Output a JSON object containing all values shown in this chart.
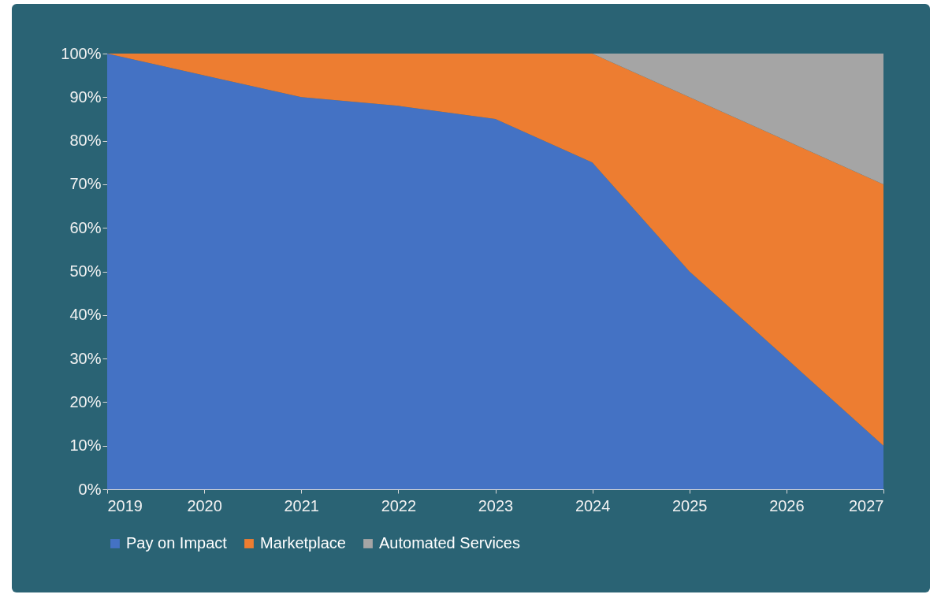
{
  "chart_data": {
    "type": "area",
    "stacked": true,
    "x": [
      2019,
      2020,
      2021,
      2022,
      2023,
      2024,
      2025,
      2026,
      2027
    ],
    "xlim": [
      2019,
      2027
    ],
    "xticks": [
      2019,
      2020,
      2021,
      2022,
      2023,
      2024,
      2025,
      2026,
      2027
    ],
    "ylim": [
      0,
      100
    ],
    "yticks": [
      {
        "value": 0,
        "label": "0%"
      },
      {
        "value": 10,
        "label": "10%"
      },
      {
        "value": 20,
        "label": "20%"
      },
      {
        "value": 30,
        "label": "30%"
      },
      {
        "value": 40,
        "label": "40%"
      },
      {
        "value": 50,
        "label": "50%"
      },
      {
        "value": 60,
        "label": "60%"
      },
      {
        "value": 70,
        "label": "70%"
      },
      {
        "value": 80,
        "label": "80%"
      },
      {
        "value": 90,
        "label": "90%"
      },
      {
        "value": 100,
        "label": "100%"
      }
    ],
    "grid": false,
    "legend": "bottom",
    "series": [
      {
        "name": "Pay on Impact",
        "color": "#4472c4",
        "values": [
          100,
          95,
          90,
          88,
          85,
          75,
          50,
          30,
          10
        ]
      },
      {
        "name": "Marketplace",
        "color": "#ed7d31",
        "values": [
          0,
          5,
          10,
          12,
          15,
          25,
          40,
          50,
          60
        ]
      },
      {
        "name": "Automated Services",
        "color": "#a5a5a5",
        "values": [
          0,
          0,
          0,
          0,
          0,
          0,
          10,
          20,
          30
        ]
      }
    ]
  }
}
